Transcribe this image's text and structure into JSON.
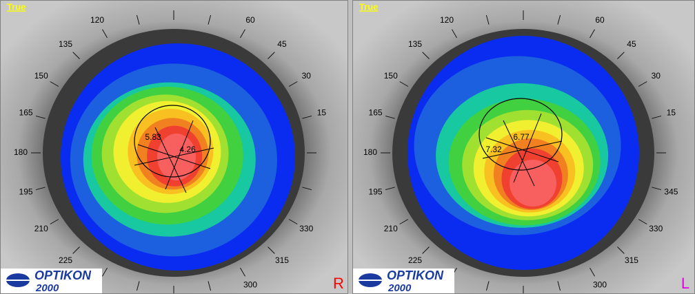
{
  "panels": [
    {
      "mode": "True",
      "angles": [
        120,
        60,
        135,
        45,
        150,
        30,
        165,
        15,
        180,
        195,
        210,
        330,
        225,
        315,
        300
      ],
      "readings": [
        5.83,
        4.26
      ],
      "logo": {
        "name": "OPTIKON",
        "year": "2000"
      },
      "eye": "R"
    },
    {
      "mode": "True",
      "angles": [
        120,
        60,
        135,
        45,
        150,
        30,
        165,
        15,
        180,
        195,
        345,
        210,
        330,
        225,
        315,
        300
      ],
      "readings": [
        7.32,
        6.77
      ],
      "logo": {
        "name": "OPTIKON",
        "year": "2000"
      },
      "eye": "L"
    }
  ]
}
